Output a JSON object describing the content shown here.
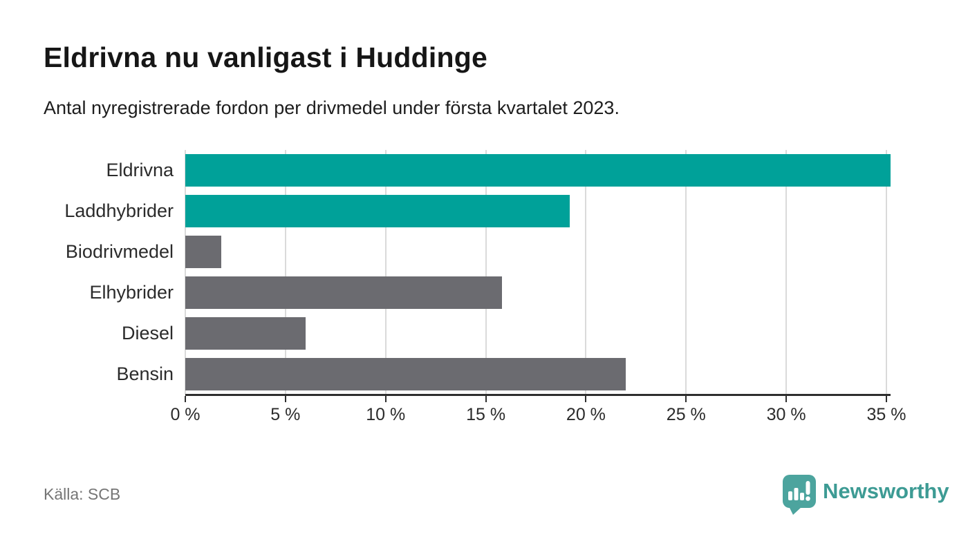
{
  "header": {
    "title": "Eldrivna nu vanligast i Huddinge",
    "subtitle": "Antal nyregistrerade fordon per drivmedel under första kvartalet 2023."
  },
  "footer": {
    "source": "Källa: SCB",
    "brand": "Newsworthy"
  },
  "colors": {
    "accent_teal": "#00a199",
    "muted_gray": "#6b6b70",
    "gridline": "#dadada",
    "axis": "#2e2e2e",
    "brand_teal": "#3d9b94",
    "logo_teal": "#4ca49e"
  },
  "chart_data": {
    "type": "bar",
    "orientation": "horizontal",
    "title": "Eldrivna nu vanligast i Huddinge",
    "subtitle": "Antal nyregistrerade fordon per drivmedel under första kvartalet 2023.",
    "categories": [
      "Eldrivna",
      "Laddhybrider",
      "Biodrivmedel",
      "Elhybrider",
      "Diesel",
      "Bensin"
    ],
    "values": [
      35.2,
      19.2,
      1.8,
      15.8,
      6.0,
      22.0
    ],
    "bar_colors": [
      "#00a199",
      "#00a199",
      "#6b6b70",
      "#6b6b70",
      "#6b6b70",
      "#6b6b70"
    ],
    "value_unit": "%",
    "x_ticks": [
      0,
      5,
      10,
      15,
      20,
      25,
      30,
      35
    ],
    "x_tick_labels": [
      "0 %",
      "5 %",
      "10 %",
      "15 %",
      "20 %",
      "25 %",
      "30 %",
      "35 %"
    ],
    "xlim": [
      0,
      35.2
    ],
    "grid": true,
    "legend": false,
    "source": "Källa: SCB"
  }
}
